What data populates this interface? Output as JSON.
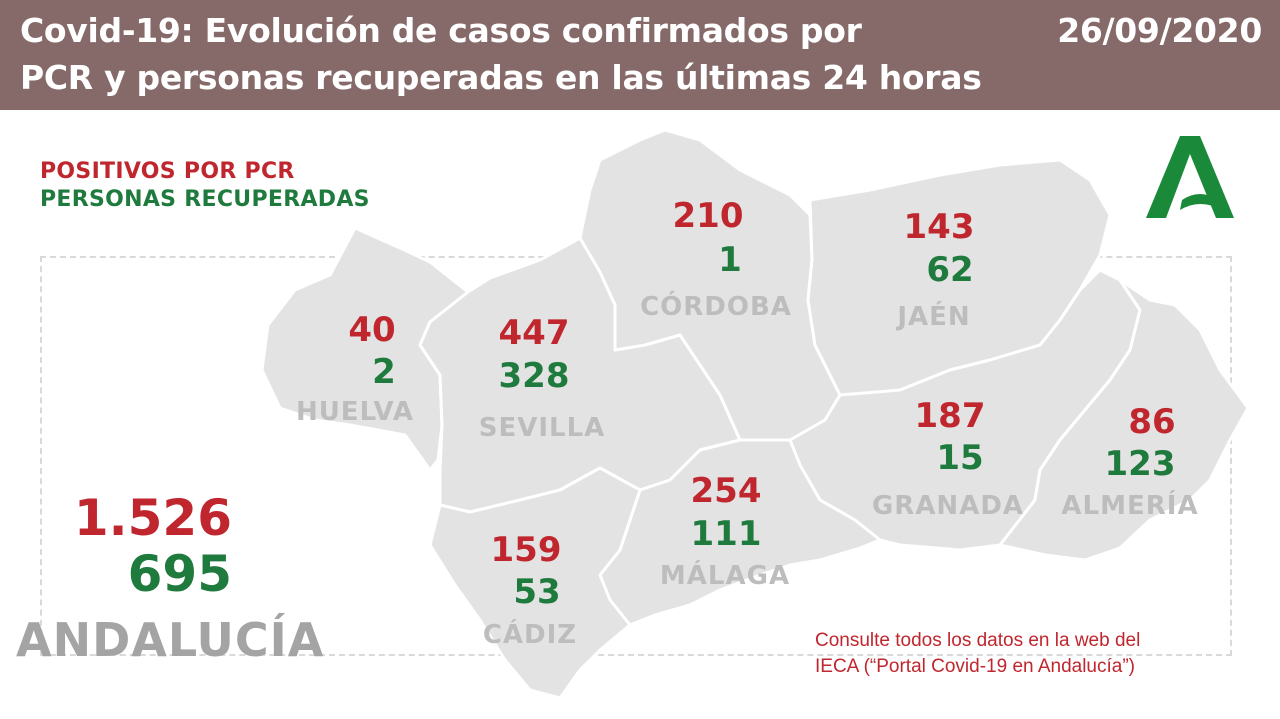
{
  "header": {
    "title": "Covid-19: Evolución de casos confirmados por\nPCR y personas recuperadas en las últimas 24 horas",
    "date": "26/09/2020"
  },
  "legend": {
    "positives_label": "POSITIVOS POR PCR",
    "recovered_label": "PERSONAS RECUPERADAS"
  },
  "colors": {
    "header_bg": "#866a6a",
    "positives": "#c0262d",
    "recovered": "#1f7a3d",
    "map_fill": "#e3e3e3",
    "province_label": "#bdbdbd",
    "logo": "#1a8a3a"
  },
  "provinces": [
    {
      "name": "HUELVA",
      "positives": "40",
      "recovered": "2"
    },
    {
      "name": "SEVILLA",
      "positives": "447",
      "recovered": "328"
    },
    {
      "name": "CÓRDOBA",
      "positives": "210",
      "recovered": "1"
    },
    {
      "name": "JAÉN",
      "positives": "143",
      "recovered": "62"
    },
    {
      "name": "CÁDIZ",
      "positives": "159",
      "recovered": "53"
    },
    {
      "name": "MÁLAGA",
      "positives": "254",
      "recovered": "111"
    },
    {
      "name": "GRANADA",
      "positives": "187",
      "recovered": "15"
    },
    {
      "name": "ALMERÍA",
      "positives": "86",
      "recovered": "123"
    }
  ],
  "total": {
    "region": "ANDALUCÍA",
    "positives": "1.526",
    "recovered": "695"
  },
  "footnote": "Consulte todos los datos en la web del\nIECA (“Portal Covid-19 en Andalucía”)",
  "logo_icon": "junta-de-andalucia-logo-icon"
}
